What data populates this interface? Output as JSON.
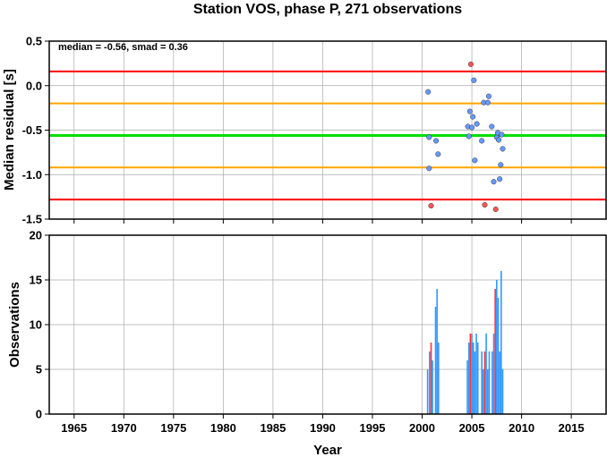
{
  "chart_data": [
    {
      "type": "scatter",
      "title": "Station VOS, phase P, 271 observations",
      "ylabel": "Median residual [s]",
      "annotation": "median = -0.56, smad = 0.36",
      "xlim": [
        1962.5,
        2018.5
      ],
      "ylim": [
        -1.5,
        0.5
      ],
      "yticks": [
        0.5,
        0.0,
        -0.5,
        -1.0,
        -1.5
      ],
      "yticklabels": [
        "0.5",
        "0.0",
        "-0.5",
        "-1.0",
        "-1.5"
      ],
      "grid": true,
      "reference_lines": [
        {
          "y": 0.16,
          "color": "#ff0000"
        },
        {
          "y": -0.2,
          "color": "#ffa500"
        },
        {
          "y": -0.56,
          "color": "#00e000"
        },
        {
          "y": -0.92,
          "color": "#ffa500"
        },
        {
          "y": -1.28,
          "color": "#ff0000"
        }
      ],
      "colors": {
        "inlier": "#6699ff",
        "outlier": "#ff5555"
      },
      "series": [
        {
          "points": [
            {
              "x": 2000.6,
              "y": -0.07,
              "outlier": false
            },
            {
              "x": 2000.7,
              "y": -0.58,
              "outlier": false
            },
            {
              "x": 2000.7,
              "y": -0.93,
              "outlier": false
            },
            {
              "x": 2000.9,
              "y": -1.35,
              "outlier": true
            },
            {
              "x": 2001.4,
              "y": -0.62,
              "outlier": false
            },
            {
              "x": 2001.6,
              "y": -0.77,
              "outlier": false
            },
            {
              "x": 2004.6,
              "y": -0.46,
              "outlier": false
            },
            {
              "x": 2004.7,
              "y": -0.57,
              "outlier": false
            },
            {
              "x": 2004.8,
              "y": -0.29,
              "outlier": false
            },
            {
              "x": 2004.9,
              "y": 0.24,
              "outlier": true
            },
            {
              "x": 2005.0,
              "y": -0.47,
              "outlier": false
            },
            {
              "x": 2005.1,
              "y": -0.35,
              "outlier": false
            },
            {
              "x": 2005.2,
              "y": 0.06,
              "outlier": false
            },
            {
              "x": 2005.3,
              "y": -0.84,
              "outlier": false
            },
            {
              "x": 2005.5,
              "y": -0.43,
              "outlier": false
            },
            {
              "x": 2006.0,
              "y": -0.62,
              "outlier": false
            },
            {
              "x": 2006.2,
              "y": -0.19,
              "outlier": false
            },
            {
              "x": 2006.3,
              "y": -1.34,
              "outlier": true
            },
            {
              "x": 2006.6,
              "y": -0.19,
              "outlier": false
            },
            {
              "x": 2006.7,
              "y": -0.12,
              "outlier": false
            },
            {
              "x": 2007.0,
              "y": -0.46,
              "outlier": false
            },
            {
              "x": 2007.2,
              "y": -1.08,
              "outlier": false
            },
            {
              "x": 2007.4,
              "y": -1.39,
              "outlier": true
            },
            {
              "x": 2007.5,
              "y": -0.58,
              "outlier": false
            },
            {
              "x": 2007.6,
              "y": -0.53,
              "outlier": false
            },
            {
              "x": 2007.7,
              "y": -0.61,
              "outlier": false
            },
            {
              "x": 2007.8,
              "y": -1.05,
              "outlier": false
            },
            {
              "x": 2007.9,
              "y": -0.89,
              "outlier": false
            },
            {
              "x": 2008.0,
              "y": -0.55,
              "outlier": false
            },
            {
              "x": 2008.1,
              "y": -0.71,
              "outlier": false
            }
          ]
        }
      ]
    },
    {
      "type": "bar",
      "ylabel": "Observations",
      "xlabel": "Year",
      "xlim": [
        1962.5,
        2018.5
      ],
      "ylim": [
        0,
        20
      ],
      "xticks": [
        1965,
        1970,
        1975,
        1980,
        1985,
        1990,
        1995,
        2000,
        2005,
        2010,
        2015
      ],
      "xticklabels": [
        "1965",
        "1970",
        "1975",
        "1980",
        "1985",
        "1990",
        "1995",
        "2000",
        "2005",
        "2010",
        "2015"
      ],
      "yticks": [
        20,
        15,
        10,
        5,
        0
      ],
      "yticklabels": [
        "20",
        "15",
        "10",
        "5",
        "0"
      ],
      "grid": true,
      "colors": {
        "total": "#3399ff",
        "outlier": "#ff3333"
      },
      "series": [
        {
          "name": "",
          "bars": [
            {
              "x": 2000.55,
              "total": 5,
              "outlier": 0
            },
            {
              "x": 2000.75,
              "total": 7,
              "outlier": 0
            },
            {
              "x": 2000.9,
              "total": 6,
              "outlier": 8
            },
            {
              "x": 2001.35,
              "total": 12,
              "outlier": 0
            },
            {
              "x": 2001.5,
              "total": 14,
              "outlier": 0
            },
            {
              "x": 2001.65,
              "total": 8,
              "outlier": 0
            },
            {
              "x": 2004.55,
              "total": 6,
              "outlier": 0
            },
            {
              "x": 2004.7,
              "total": 8,
              "outlier": 0
            },
            {
              "x": 2004.85,
              "total": 8,
              "outlier": 9
            },
            {
              "x": 2005.0,
              "total": 9,
              "outlier": 0
            },
            {
              "x": 2005.15,
              "total": 8,
              "outlier": 0
            },
            {
              "x": 2005.3,
              "total": 7,
              "outlier": 0
            },
            {
              "x": 2005.45,
              "total": 9,
              "outlier": 0
            },
            {
              "x": 2005.6,
              "total": 8,
              "outlier": 0
            },
            {
              "x": 2006.0,
              "total": 7,
              "outlier": 0
            },
            {
              "x": 2006.15,
              "total": 5,
              "outlier": 0
            },
            {
              "x": 2006.3,
              "total": 9,
              "outlier": 7
            },
            {
              "x": 2006.6,
              "total": 5,
              "outlier": 0
            },
            {
              "x": 2006.75,
              "total": 7,
              "outlier": 0
            },
            {
              "x": 2007.05,
              "total": 7,
              "outlier": 0
            },
            {
              "x": 2007.2,
              "total": 9,
              "outlier": 0
            },
            {
              "x": 2007.35,
              "total": 12,
              "outlier": 14
            },
            {
              "x": 2007.5,
              "total": 15,
              "outlier": 0
            },
            {
              "x": 2007.65,
              "total": 13,
              "outlier": 0
            },
            {
              "x": 2007.8,
              "total": 7,
              "outlier": 0
            },
            {
              "x": 2007.95,
              "total": 16,
              "outlier": 0
            },
            {
              "x": 2008.1,
              "total": 5,
              "outlier": 0
            }
          ]
        }
      ]
    }
  ]
}
